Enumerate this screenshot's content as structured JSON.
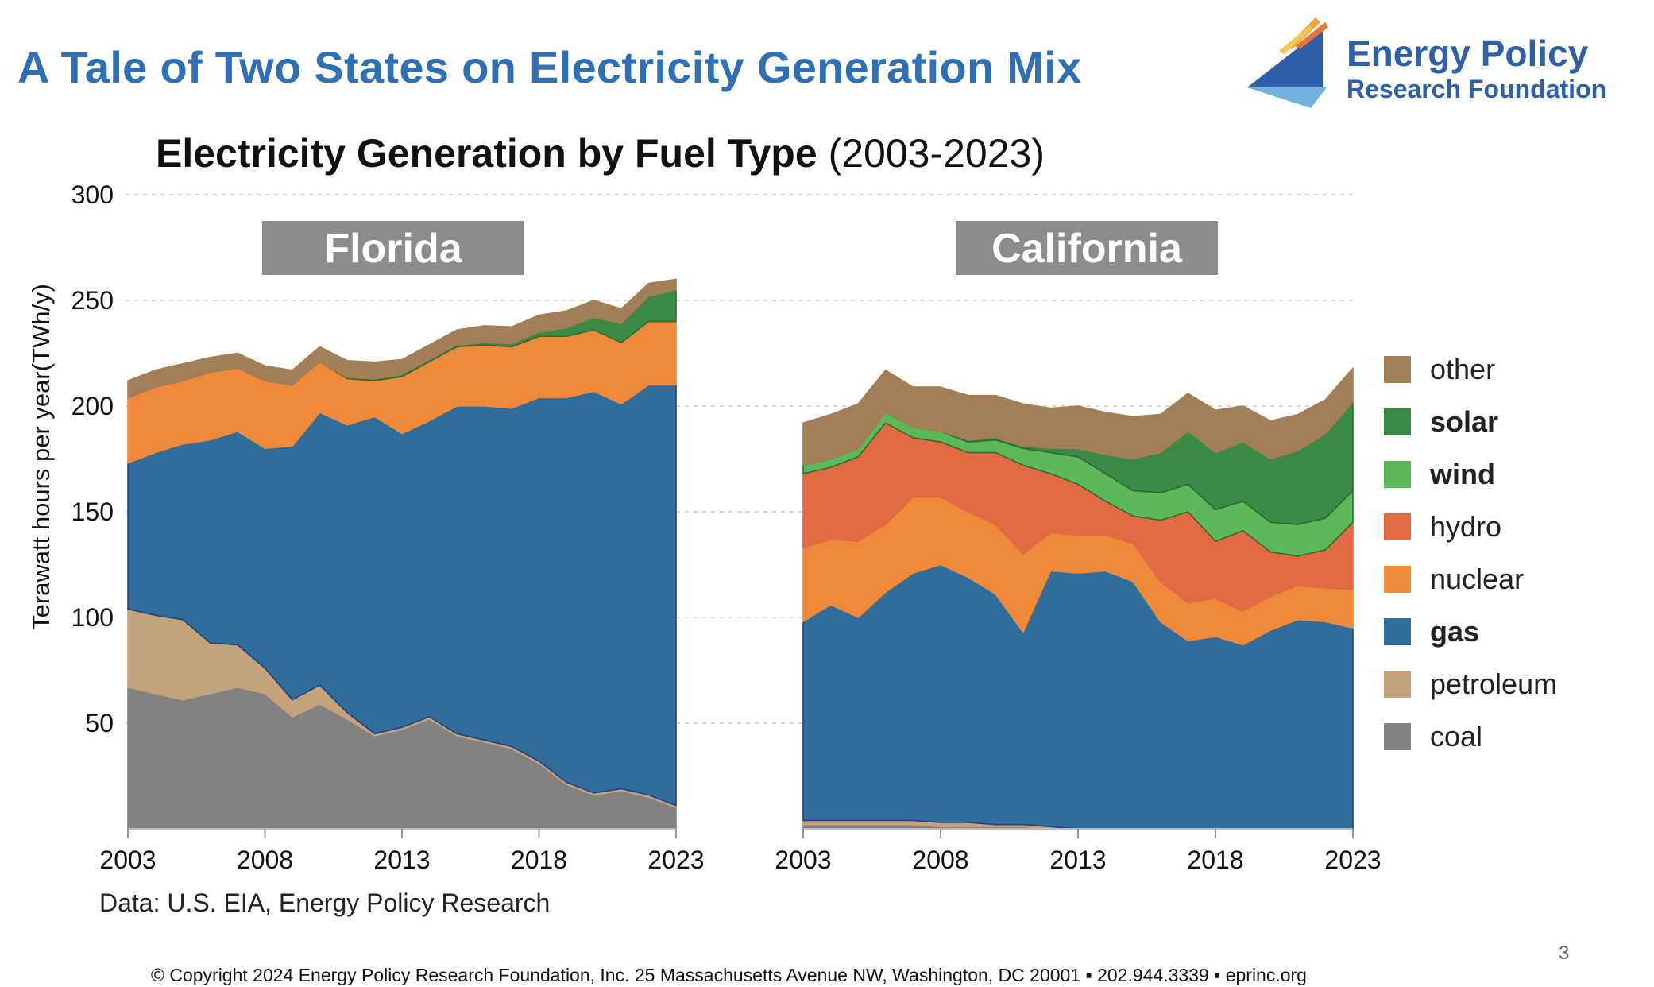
{
  "slide": {
    "title": "A Tale of Two States on Electricity Generation Mix",
    "logo_line1": "Energy Policy",
    "logo_line2": "Research Foundation",
    "chart_title_bold": "Electricity Generation by Fuel Type",
    "chart_title_normal": "(2003-2023)",
    "source_note": "Data: U.S. EIA, Energy Policy Research",
    "copyright": "© Copyright 2024 Energy Policy Research Foundation, Inc. 25 Massachusetts Avenue NW, Washington, DC 20001 ▪ 202.944.3339 ▪ eprinc.org",
    "page_number": "3",
    "colors": {
      "title": "#2e6fb7",
      "logo_text": "#2f5fa8",
      "panel_label_bg": "#8c8c8c"
    }
  },
  "legend": [
    {
      "label": "other",
      "color": "#a27f57",
      "bold": false
    },
    {
      "label": "solar",
      "color": "#3a8a45",
      "bold": true
    },
    {
      "label": "wind",
      "color": "#5db85a",
      "bold": true
    },
    {
      "label": "hydro",
      "color": "#e06b43",
      "bold": false
    },
    {
      "label": "nuclear",
      "color": "#f0893a",
      "bold": false
    },
    {
      "label": "gas",
      "color": "#2f6d9a",
      "bold": true
    },
    {
      "label": "petroleum",
      "color": "#c4a37b",
      "bold": false
    },
    {
      "label": "coal",
      "color": "#818181",
      "bold": false
    }
  ],
  "chart_data": [
    {
      "type": "area",
      "stacked": true,
      "title": "Florida",
      "ylabel": "Terawatt hours per year(TWh/y)",
      "ylim": [
        0,
        300
      ],
      "yticks": [
        50,
        100,
        150,
        200,
        250,
        300
      ],
      "xticks": [
        2003,
        2008,
        2013,
        2018,
        2023
      ],
      "grid": "dashed horizontal",
      "x": [
        2003,
        2004,
        2005,
        2006,
        2007,
        2008,
        2009,
        2010,
        2011,
        2012,
        2013,
        2014,
        2015,
        2016,
        2017,
        2018,
        2019,
        2020,
        2021,
        2022,
        2023
      ],
      "series": [
        {
          "name": "coal",
          "color": "#818181",
          "values": [
            67,
            64,
            61,
            64,
            67,
            64,
            53,
            59,
            52,
            44,
            47,
            52,
            44,
            41,
            38,
            31,
            21,
            16,
            18,
            15,
            10
          ]
        },
        {
          "name": "petroleum",
          "color": "#c4a37b",
          "values": [
            37,
            37,
            38,
            24,
            20,
            12,
            8,
            9,
            3,
            1,
            1,
            1,
            1,
            1,
            1,
            1,
            1,
            1,
            1,
            1,
            1
          ]
        },
        {
          "name": "gas",
          "color": "#2f6d9a",
          "values": [
            69,
            77,
            83,
            96,
            101,
            104,
            120,
            129,
            136,
            150,
            139,
            140,
            155,
            158,
            160,
            172,
            182,
            190,
            182,
            194,
            199
          ]
        },
        {
          "name": "nuclear",
          "color": "#f0893a",
          "values": [
            31,
            31,
            30,
            32,
            30,
            32,
            29,
            24,
            22,
            17,
            27,
            28,
            28,
            29,
            29,
            29,
            29,
            29,
            29,
            30,
            30
          ]
        },
        {
          "name": "hydro",
          "color": "#e06b43",
          "values": [
            0,
            0,
            0,
            0,
            0,
            0,
            0,
            0,
            0,
            0,
            0,
            0,
            0,
            0,
            0,
            0,
            0,
            0,
            0,
            0,
            0
          ]
        },
        {
          "name": "wind",
          "color": "#5db85a",
          "values": [
            0,
            0,
            0,
            0,
            0,
            0,
            0,
            0,
            0,
            0,
            0,
            0,
            0,
            0,
            0,
            0,
            0,
            0,
            0,
            0,
            0
          ]
        },
        {
          "name": "solar",
          "color": "#3a8a45",
          "values": [
            0,
            0,
            0,
            0,
            0,
            0,
            0,
            0,
            0.5,
            0.8,
            1,
            1,
            1,
            1,
            1.5,
            2,
            4,
            6,
            9,
            12,
            15
          ]
        },
        {
          "name": "other",
          "color": "#a27f57",
          "values": [
            8,
            8,
            8,
            7,
            7,
            7,
            7,
            7,
            8,
            8,
            7,
            7,
            7,
            8,
            8,
            8,
            8,
            8,
            7,
            6,
            5
          ]
        }
      ]
    },
    {
      "type": "area",
      "stacked": true,
      "title": "California",
      "ylim": [
        0,
        300
      ],
      "xticks": [
        2003,
        2008,
        2013,
        2018,
        2023
      ],
      "x": [
        2003,
        2004,
        2005,
        2006,
        2007,
        2008,
        2009,
        2010,
        2011,
        2012,
        2013,
        2014,
        2015,
        2016,
        2017,
        2018,
        2019,
        2020,
        2021,
        2022,
        2023
      ],
      "series": [
        {
          "name": "coal",
          "color": "#818181",
          "values": [
            2,
            2,
            2,
            2,
            2,
            1,
            1,
            1,
            1,
            0,
            0,
            0,
            0,
            0,
            0,
            0,
            0,
            0,
            0,
            0,
            0
          ]
        },
        {
          "name": "petroleum",
          "color": "#c4a37b",
          "values": [
            2,
            2,
            2,
            2,
            2,
            2,
            2,
            1,
            1,
            1,
            0,
            0,
            0,
            0,
            0,
            0,
            0,
            0,
            0,
            0,
            0
          ]
        },
        {
          "name": "gas",
          "color": "#2f6d9a",
          "values": [
            94,
            102,
            96,
            108,
            117,
            122,
            116,
            109,
            91,
            121,
            121,
            122,
            117,
            98,
            89,
            91,
            87,
            94,
            99,
            98,
            95
          ]
        },
        {
          "name": "nuclear",
          "color": "#f0893a",
          "values": [
            35,
            31,
            36,
            32,
            36,
            32,
            31,
            33,
            37,
            18,
            18,
            17,
            18,
            19,
            18,
            18,
            16,
            16,
            16,
            16,
            18
          ]
        },
        {
          "name": "hydro",
          "color": "#e06b43",
          "values": [
            35,
            34,
            40,
            48,
            28,
            26,
            28,
            34,
            42,
            28,
            24,
            16,
            13,
            29,
            43,
            27,
            38,
            21,
            14,
            18,
            32
          ]
        },
        {
          "name": "wind",
          "color": "#5db85a",
          "values": [
            4,
            4,
            4,
            5,
            5,
            5,
            5,
            6,
            8,
            10,
            13,
            13,
            12,
            13,
            13,
            15,
            14,
            14,
            15,
            15,
            15
          ]
        },
        {
          "name": "solar",
          "color": "#3a8a45",
          "values": [
            0,
            0,
            0,
            0,
            0,
            0,
            1,
            1,
            1,
            2,
            4,
            9,
            15,
            19,
            25,
            27,
            28,
            30,
            35,
            40,
            42
          ]
        },
        {
          "name": "other",
          "color": "#a27f57",
          "values": [
            20,
            21,
            21,
            20,
            19,
            21,
            21,
            20,
            20,
            19,
            20,
            20,
            20,
            18,
            18,
            20,
            17,
            18,
            17,
            16,
            16
          ]
        }
      ]
    }
  ],
  "axis_labels": {
    "yticks": [
      "50",
      "100",
      "150",
      "200",
      "250",
      "300"
    ],
    "xticks_left": [
      "2003",
      "2008",
      "2013",
      "2018",
      "2023"
    ],
    "xticks_right": [
      "2003",
      "2008",
      "2013",
      "2018",
      "2023"
    ]
  }
}
